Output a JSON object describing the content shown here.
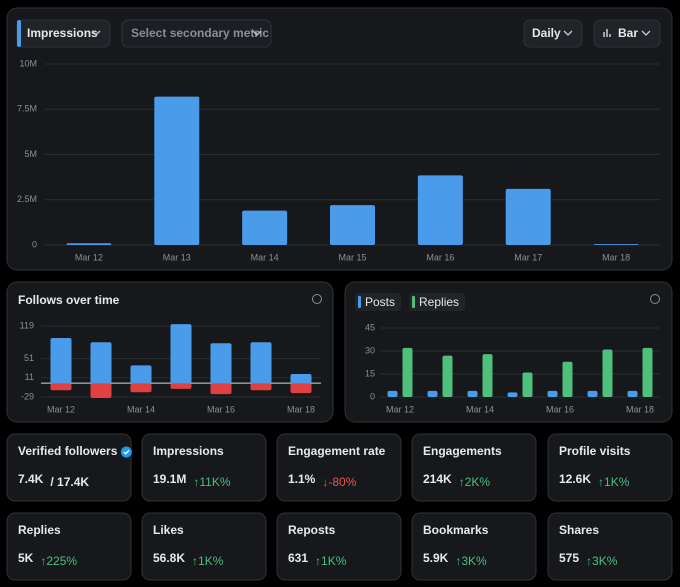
{
  "controls": {
    "primary_metric": "Impressions",
    "secondary_metric": "Select secondary metric",
    "interval": "Daily",
    "chart_style": "Bar"
  },
  "chart_data": [
    {
      "type": "bar",
      "categories": [
        "Mar 12",
        "Mar 13",
        "Mar 14",
        "Mar 15",
        "Mar 16",
        "Mar 17",
        "Mar 18"
      ],
      "values": [
        100000,
        8200000,
        1900000,
        2200000,
        3850000,
        3100000,
        50000
      ],
      "color": "#4a9bea",
      "ylim": [
        0,
        10000000
      ],
      "yticks": [
        0,
        {
          "value": 2500000,
          "label": "2.5M"
        },
        {
          "value": 5000000,
          "label": "5M"
        },
        {
          "value": 7500000,
          "label": "7.5M"
        },
        {
          "value": 10000000,
          "label": "10M"
        }
      ],
      "grid": true
    },
    {
      "type": "bar",
      "title": "Follows over time",
      "categories": [
        "Mar 12",
        null,
        "Mar 14",
        null,
        "Mar 16",
        null,
        "Mar 18"
      ],
      "series": [
        {
          "color": "#4a9bea",
          "values": [
            94,
            85,
            37,
            123,
            83,
            85,
            19
          ]
        },
        {
          "color": "#e0403f",
          "values": [
            -15,
            -31,
            -19,
            -12,
            -23,
            -15,
            -21
          ]
        }
      ],
      "stacked": true,
      "ylim": [
        -29,
        119
      ],
      "yticks": [
        -29,
        11,
        51,
        119
      ],
      "grid": true
    },
    {
      "type": "bar",
      "categories": [
        "Mar 12",
        null,
        "Mar 14",
        null,
        "Mar 16",
        null,
        "Mar 18"
      ],
      "series": [
        {
          "name": "Posts",
          "color": "#4a9bea",
          "values": [
            4,
            4,
            4,
            3,
            4,
            4,
            4
          ]
        },
        {
          "name": "Replies",
          "color": "#4fbf7c",
          "values": [
            32,
            27,
            28,
            16,
            23,
            31,
            32
          ]
        }
      ],
      "ylim": [
        0,
        45
      ],
      "yticks": [
        0,
        15,
        30,
        45
      ],
      "grid": true,
      "legend": "top-left"
    }
  ],
  "stats": [
    {
      "label": "Verified followers",
      "value": "7.4K",
      "total": "/ 17.4K",
      "verified_badge": true
    },
    {
      "label": "Impressions",
      "value": "19.1M",
      "change": "↑11K%",
      "change_color": "#4fbf7c"
    },
    {
      "label": "Engagement rate",
      "value": "1.1%",
      "change": "↓-80%",
      "change_color": "#f0524f"
    },
    {
      "label": "Engagements",
      "value": "214K",
      "change": "↑2K%",
      "change_color": "#4fbf7c"
    },
    {
      "label": "Profile visits",
      "value": "12.6K",
      "change": "↑1K%",
      "change_color": "#4fbf7c"
    },
    {
      "label": "Replies",
      "value": "5K",
      "change": "↑225%",
      "change_color": "#4fbf7c"
    },
    {
      "label": "Likes",
      "value": "56.8K",
      "change": "↑1K%",
      "change_color": "#4fbf7c"
    },
    {
      "label": "Reposts",
      "value": "631",
      "change": "↑1K%",
      "change_color": "#4fbf7c"
    },
    {
      "label": "Bookmarks",
      "value": "5.9K",
      "change": "↑3K%",
      "change_color": "#4fbf7c"
    },
    {
      "label": "Shares",
      "value": "575",
      "change": "↑3K%",
      "change_color": "#4fbf7c"
    }
  ]
}
